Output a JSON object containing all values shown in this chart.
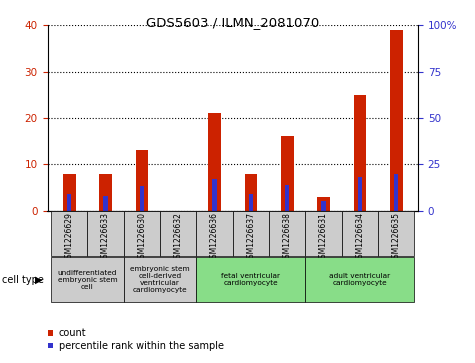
{
  "title": "GDS5603 / ILMN_2081070",
  "samples": [
    "GSM1226629",
    "GSM1226633",
    "GSM1226630",
    "GSM1226632",
    "GSM1226636",
    "GSM1226637",
    "GSM1226638",
    "GSM1226631",
    "GSM1226634",
    "GSM1226635"
  ],
  "counts": [
    8,
    8,
    13,
    0,
    21,
    8,
    16,
    3,
    25,
    39
  ],
  "percentiles": [
    9,
    8,
    13,
    0,
    17,
    9,
    14,
    5,
    18,
    20
  ],
  "bar_color_red": "#CC2200",
  "bar_color_blue": "#3333CC",
  "left_ylim": [
    0,
    40
  ],
  "right_ylim": [
    0,
    100
  ],
  "left_yticks": [
    0,
    10,
    20,
    30,
    40
  ],
  "right_yticks": [
    0,
    25,
    50,
    75,
    100
  ],
  "right_yticklabels": [
    "0",
    "25",
    "50",
    "75",
    "100%"
  ],
  "cell_type_groups": [
    {
      "label": "undifferentiated\nembryonic stem\ncell",
      "indices": [
        0,
        1
      ],
      "color": "#cccccc"
    },
    {
      "label": "embryonic stem\ncell-derived\nventricular\ncardiomyocyte",
      "indices": [
        2,
        3
      ],
      "color": "#cccccc"
    },
    {
      "label": "fetal ventricular\ncardiomyocyte",
      "indices": [
        4,
        5,
        6
      ],
      "color": "#88dd88"
    },
    {
      "label": "adult ventricular\ncardiomyocyte",
      "indices": [
        7,
        8,
        9
      ],
      "color": "#88dd88"
    }
  ],
  "xtick_bg_color": "#cccccc",
  "cell_type_label": "cell type",
  "legend_count_label": "count",
  "legend_percentile_label": "percentile rank within the sample",
  "background_color": "#ffffff"
}
